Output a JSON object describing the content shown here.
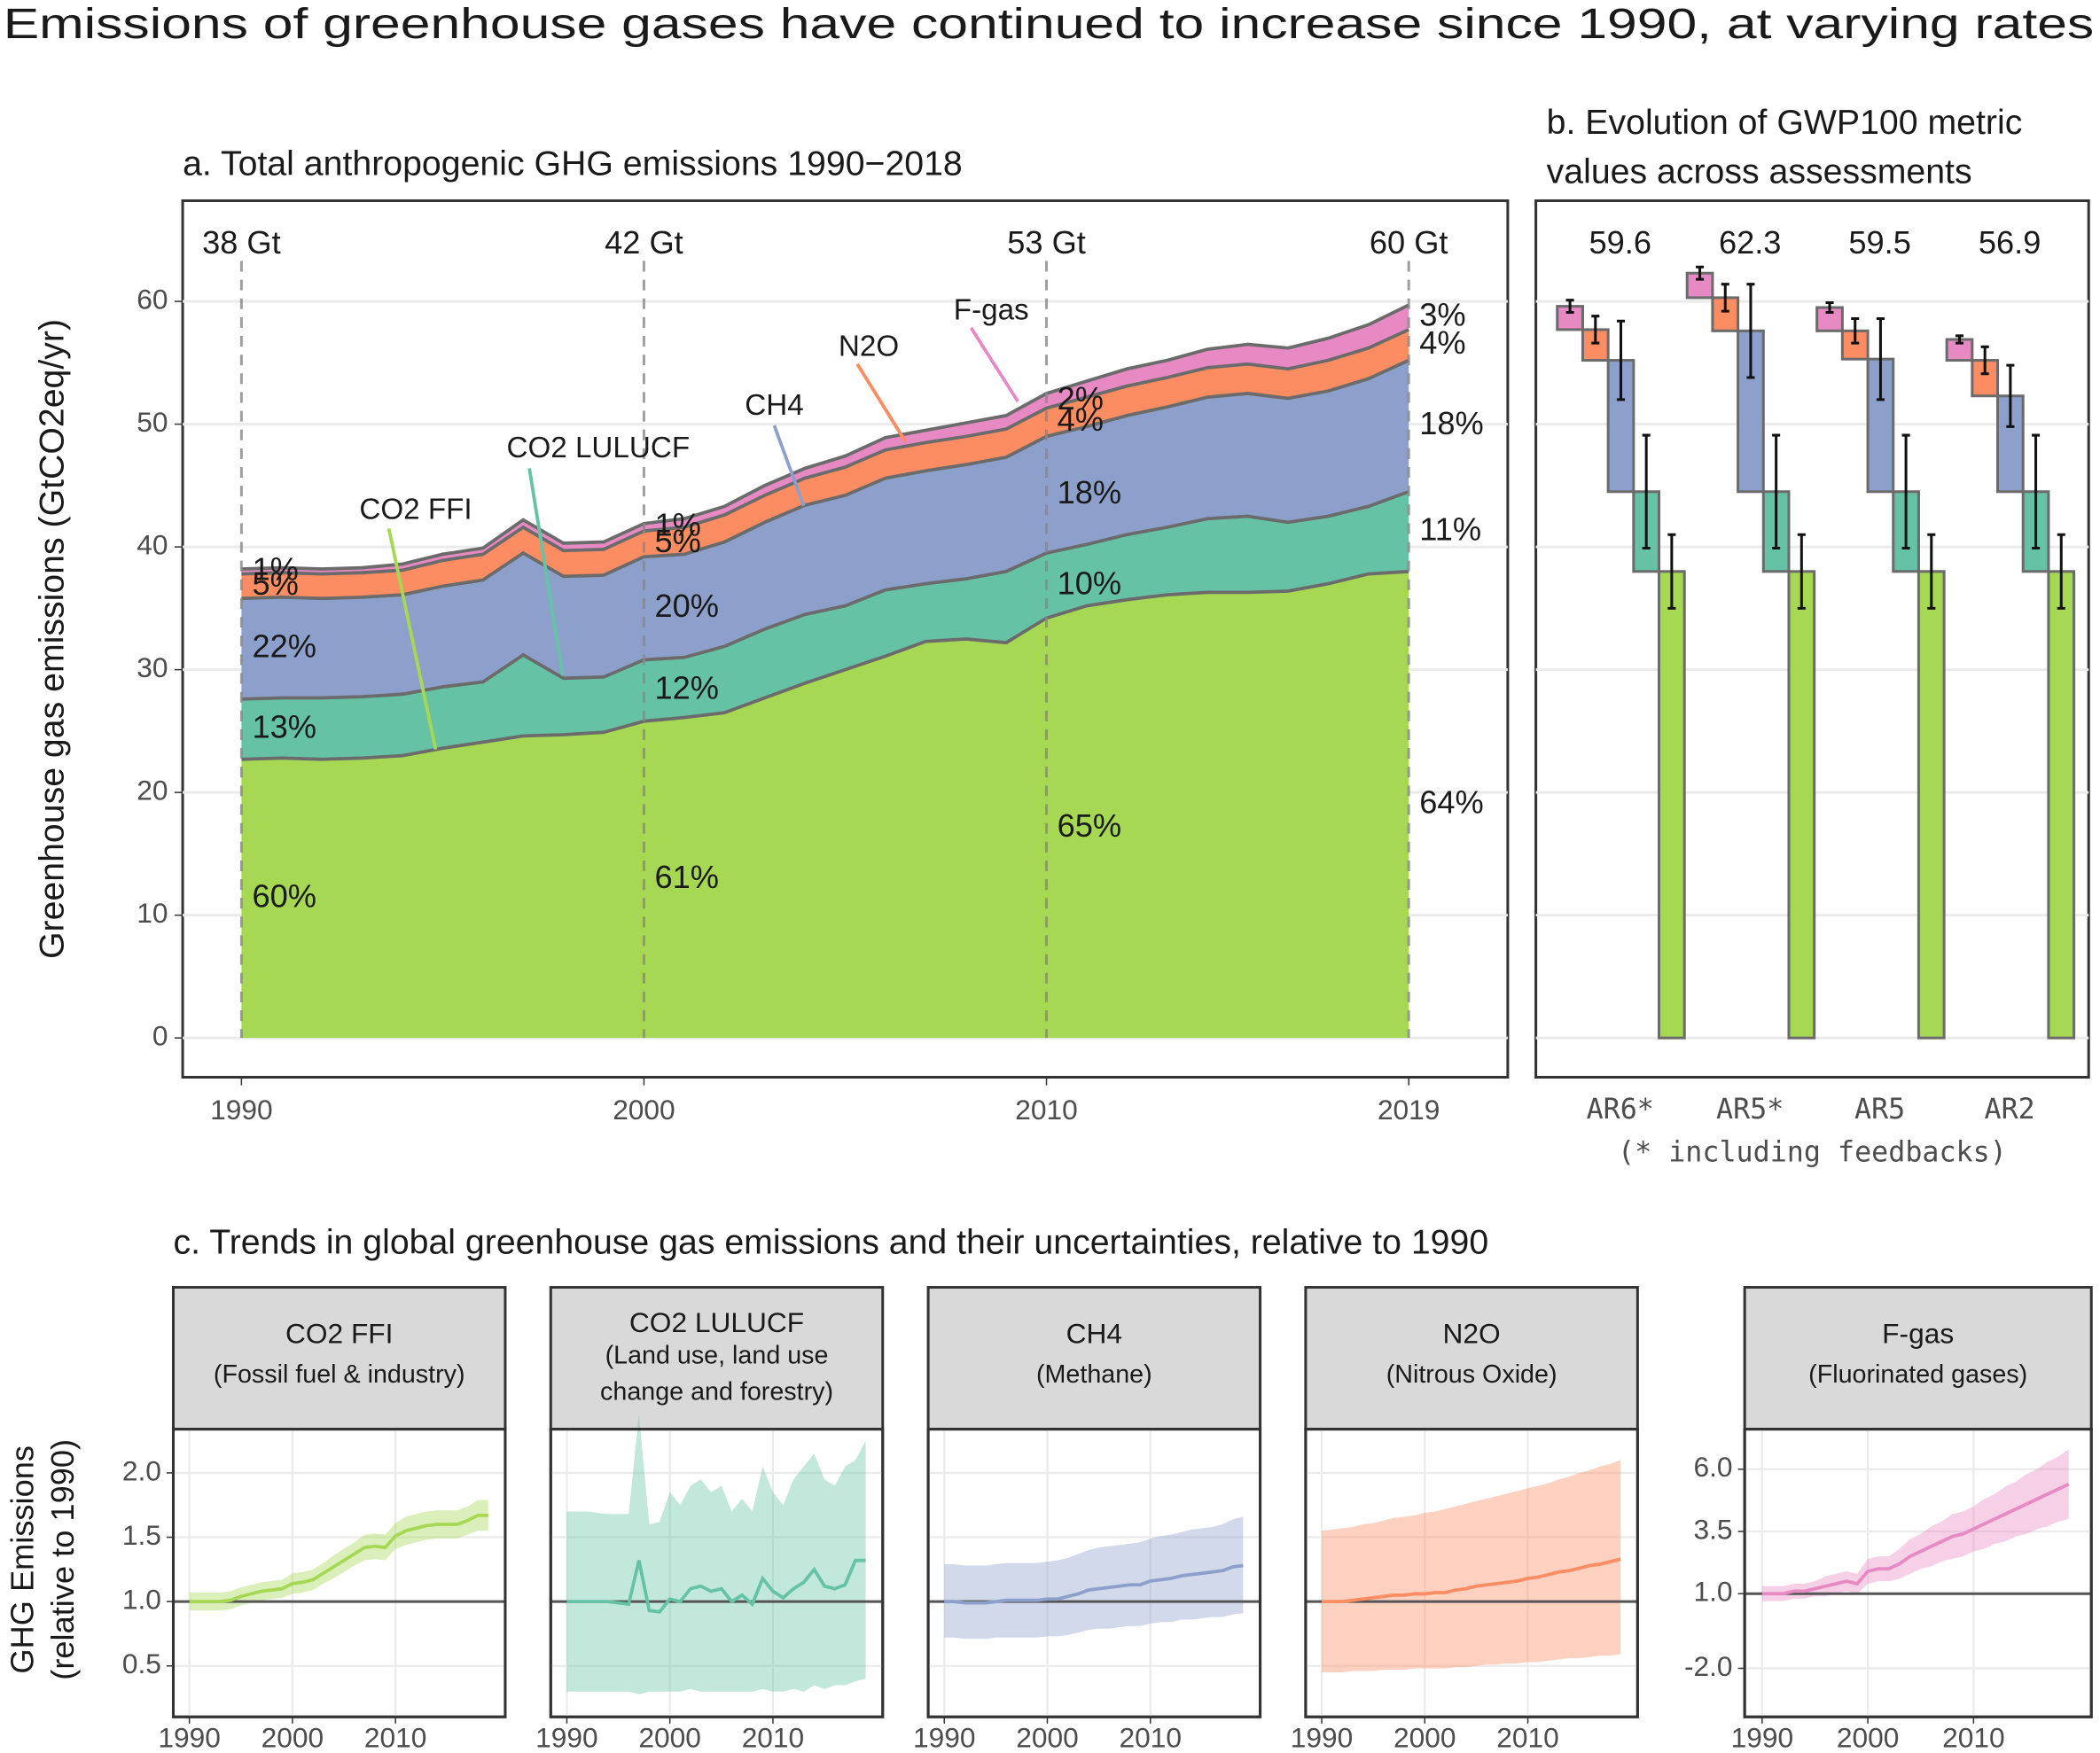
{
  "title": "Emissions of greenhouse gases have continued to increase since 1990, at varying rates",
  "chart_data": [
    {
      "type": "area",
      "title": "a. Total anthropogenic GHG emissions 1990−2018",
      "ylabel": "Greenhouse gas emissions (GtCO2eq/yr)",
      "x": [
        1990,
        1991,
        1992,
        1993,
        1994,
        1995,
        1996,
        1997,
        1998,
        1999,
        2000,
        2001,
        2002,
        2003,
        2004,
        2005,
        2006,
        2007,
        2008,
        2009,
        2010,
        2011,
        2012,
        2013,
        2014,
        2015,
        2016,
        2017,
        2018,
        2019
      ],
      "xlim": [
        1988.54,
        2021.46
      ],
      "xticks": [
        1990,
        2000,
        2010,
        2019
      ],
      "ylim": [
        -3.2,
        68.2
      ],
      "yticks": [
        0,
        10,
        20,
        30,
        40,
        50,
        60
      ],
      "grid": true,
      "series": [
        {
          "name": "CO2 FFI",
          "color": "#a6d854",
          "values": [
            22.7,
            22.8,
            22.7,
            22.8,
            23.0,
            23.6,
            24.1,
            24.6,
            24.7,
            24.9,
            25.8,
            26.1,
            26.5,
            27.7,
            28.9,
            30.0,
            31.1,
            32.3,
            32.5,
            32.2,
            34.2,
            35.2,
            35.7,
            36.1,
            36.3,
            36.3,
            36.4,
            37.0,
            37.8,
            38.0
          ]
        },
        {
          "name": "CO2 LULUCF",
          "color": "#66c2a5",
          "values": [
            4.9,
            4.9,
            5.0,
            5.0,
            5.0,
            5.0,
            4.9,
            6.6,
            4.6,
            4.5,
            5.0,
            4.9,
            5.4,
            5.6,
            5.6,
            5.2,
            5.4,
            4.7,
            4.9,
            5.8,
            5.3,
            5.0,
            5.3,
            5.5,
            6.0,
            6.2,
            5.6,
            5.5,
            5.5,
            6.5
          ]
        },
        {
          "name": "CH4",
          "color": "#8da0cb",
          "values": [
            8.2,
            8.2,
            8.1,
            8.1,
            8.1,
            8.2,
            8.3,
            8.3,
            8.3,
            8.3,
            8.4,
            8.4,
            8.5,
            8.7,
            8.9,
            9.0,
            9.1,
            9.2,
            9.3,
            9.3,
            9.5,
            9.6,
            9.7,
            9.8,
            9.9,
            10.0,
            10.1,
            10.2,
            10.4,
            10.7
          ]
        },
        {
          "name": "N2O",
          "color": "#fc8d62",
          "values": [
            2.0,
            2.0,
            2.0,
            2.0,
            2.0,
            2.1,
            2.1,
            2.1,
            2.1,
            2.1,
            2.1,
            2.2,
            2.2,
            2.2,
            2.2,
            2.3,
            2.3,
            2.3,
            2.3,
            2.3,
            2.3,
            2.4,
            2.4,
            2.4,
            2.4,
            2.4,
            2.4,
            2.5,
            2.5,
            2.5
          ]
        },
        {
          "name": "F-gas",
          "color": "#e78ac3",
          "values": [
            0.4,
            0.4,
            0.4,
            0.4,
            0.5,
            0.5,
            0.5,
            0.6,
            0.6,
            0.6,
            0.6,
            0.7,
            0.7,
            0.8,
            0.8,
            0.9,
            1.0,
            1.0,
            1.1,
            1.1,
            1.2,
            1.3,
            1.4,
            1.4,
            1.5,
            1.6,
            1.7,
            1.8,
            1.9,
            2.0
          ]
        }
      ],
      "markers": [
        {
          "x": 1990,
          "total": "38 Gt",
          "shares": [
            "60%",
            "13%",
            "22%",
            "5%",
            "1%"
          ]
        },
        {
          "x": 2000,
          "total": "42 Gt",
          "shares": [
            "61%",
            "12%",
            "20%",
            "5%",
            "1%"
          ]
        },
        {
          "x": 2010,
          "total": "53 Gt",
          "shares": [
            "65%",
            "10%",
            "18%",
            "4%",
            "2%"
          ]
        },
        {
          "x": 2019,
          "total": "60 Gt",
          "shares": [
            "64%",
            "11%",
            "18%",
            "4%",
            "3%"
          ]
        }
      ]
    },
    {
      "type": "waterfall",
      "title": [
        "b. Evolution of GWP100 metric",
        "values across assessments"
      ],
      "categories": [
        "AR6*",
        "AR5*",
        "AR5",
        "AR2"
      ],
      "note": "(* including feedbacks)",
      "ylim": [
        -3.2,
        68.2
      ],
      "gridlines": [
        0,
        10,
        20,
        30,
        40,
        50,
        60
      ],
      "totals": [
        59.6,
        62.3,
        59.5,
        56.9
      ],
      "series": [
        {
          "color": "#a6d854",
          "values": [
            38,
            38,
            38,
            38
          ],
          "errors": [
            3,
            3,
            3,
            3
          ]
        },
        {
          "color": "#66c2a5",
          "values": [
            6.5,
            6.5,
            6.5,
            6.5
          ],
          "errors": [
            4.6,
            4.6,
            4.6,
            4.6
          ]
        },
        {
          "color": "#8da0cb",
          "values": [
            10.7,
            13.1,
            10.8,
            7.8
          ],
          "errors": [
            3.2,
            3.8,
            3.3,
            2.5
          ]
        },
        {
          "color": "#fc8d62",
          "values": [
            2.5,
            2.7,
            2.3,
            2.9
          ],
          "errors": [
            1.1,
            1.1,
            1.0,
            1.1
          ]
        },
        {
          "color": "#e78ac3",
          "values": [
            1.9,
            2.0,
            1.9,
            1.7
          ],
          "errors": [
            0.5,
            0.5,
            0.4,
            0.3
          ]
        }
      ]
    },
    {
      "type": "band-line",
      "section_title": "c. Trends in global greenhouse gas emissions and their uncertainties, relative to 1990",
      "ylabel": [
        "GHG Emissions",
        "(relative to 1990)"
      ],
      "title": "CO2 FFI",
      "subtitle": [
        "(Fossil fuel & industry)"
      ],
      "color": "#a6d854",
      "x": [
        1990,
        1991,
        1992,
        1993,
        1994,
        1995,
        1996,
        1997,
        1998,
        1999,
        2000,
        2001,
        2002,
        2003,
        2004,
        2005,
        2006,
        2007,
        2008,
        2009,
        2010,
        2011,
        2012,
        2013,
        2014,
        2015,
        2016,
        2017,
        2018,
        2019
      ],
      "values": [
        1.0,
        1.0,
        1.0,
        1.0,
        1.01,
        1.04,
        1.06,
        1.08,
        1.09,
        1.1,
        1.14,
        1.15,
        1.17,
        1.22,
        1.27,
        1.32,
        1.37,
        1.42,
        1.43,
        1.42,
        1.51,
        1.55,
        1.57,
        1.59,
        1.6,
        1.6,
        1.6,
        1.63,
        1.67,
        1.67
      ],
      "lower": [
        0.93,
        0.93,
        0.93,
        0.93,
        0.94,
        0.97,
        0.99,
        1.01,
        1.02,
        1.03,
        1.06,
        1.07,
        1.09,
        1.14,
        1.18,
        1.23,
        1.28,
        1.32,
        1.33,
        1.32,
        1.41,
        1.44,
        1.46,
        1.48,
        1.49,
        1.49,
        1.49,
        1.52,
        1.55,
        1.55
      ],
      "upper": [
        1.07,
        1.07,
        1.07,
        1.07,
        1.08,
        1.11,
        1.13,
        1.15,
        1.16,
        1.17,
        1.22,
        1.23,
        1.25,
        1.3,
        1.36,
        1.41,
        1.46,
        1.52,
        1.53,
        1.52,
        1.61,
        1.66,
        1.68,
        1.7,
        1.71,
        1.71,
        1.71,
        1.74,
        1.79,
        1.79
      ],
      "reference": 1,
      "xlim": [
        1988.44,
        2020.65
      ],
      "xticks": [
        1990,
        2000,
        2010
      ],
      "ylim": [
        0.104,
        2.34
      ],
      "yticks": [
        0.5,
        {
          "value": 1,
          "label": "1.0"
        },
        1.5,
        {
          "value": 2,
          "label": "2.0"
        }
      ],
      "grid": true
    },
    {
      "type": "band-line",
      "title": "CO2 LULUCF",
      "subtitle": [
        "(Land use, land use",
        "change and forestry)"
      ],
      "color": "#66c2a5",
      "x": [
        1990,
        1991,
        1992,
        1993,
        1994,
        1995,
        1996,
        1997,
        1998,
        1999,
        2000,
        2001,
        2002,
        2003,
        2004,
        2005,
        2006,
        2007,
        2008,
        2009,
        2010,
        2011,
        2012,
        2013,
        2014,
        2015,
        2016,
        2017,
        2018,
        2019
      ],
      "values": [
        1.0,
        1.0,
        1.0,
        1.0,
        1.0,
        0.99,
        0.98,
        1.32,
        0.93,
        0.92,
        1.02,
        1.0,
        1.1,
        1.12,
        1.08,
        1.1,
        1.0,
        1.05,
        0.98,
        1.18,
        1.08,
        1.03,
        1.1,
        1.15,
        1.25,
        1.12,
        1.1,
        1.13,
        1.32,
        1.32
      ],
      "lower": [
        0.3,
        0.3,
        0.3,
        0.3,
        0.3,
        0.3,
        0.3,
        0.28,
        0.3,
        0.3,
        0.3,
        0.3,
        0.32,
        0.3,
        0.3,
        0.3,
        0.3,
        0.3,
        0.3,
        0.32,
        0.3,
        0.3,
        0.32,
        0.3,
        0.35,
        0.32,
        0.35,
        0.35,
        0.38,
        0.4
      ],
      "upper": [
        1.7,
        1.7,
        1.7,
        1.69,
        1.68,
        1.68,
        1.68,
        2.45,
        1.6,
        1.62,
        1.85,
        1.75,
        1.9,
        1.95,
        1.85,
        1.9,
        1.7,
        1.8,
        1.7,
        2.05,
        1.85,
        1.75,
        1.95,
        2.05,
        2.15,
        1.95,
        1.9,
        2.05,
        2.1,
        2.25
      ],
      "reference": 1,
      "xlim": [
        1988.44,
        2020.65
      ],
      "xticks": [
        1990,
        2000,
        2010
      ],
      "ylim": [
        0.104,
        2.34
      ],
      "grid": true
    },
    {
      "type": "band-line",
      "title": "CH4",
      "subtitle": [
        "(Methane)"
      ],
      "color": "#8da0cb",
      "x": [
        1990,
        1991,
        1992,
        1993,
        1994,
        1995,
        1996,
        1997,
        1998,
        1999,
        2000,
        2001,
        2002,
        2003,
        2004,
        2005,
        2006,
        2007,
        2008,
        2009,
        2010,
        2011,
        2012,
        2013,
        2014,
        2015,
        2016,
        2017,
        2018,
        2019
      ],
      "values": [
        1.0,
        1.0,
        0.99,
        0.99,
        0.99,
        1.0,
        1.01,
        1.01,
        1.01,
        1.01,
        1.02,
        1.02,
        1.04,
        1.06,
        1.09,
        1.1,
        1.11,
        1.12,
        1.13,
        1.13,
        1.16,
        1.17,
        1.18,
        1.2,
        1.21,
        1.22,
        1.23,
        1.24,
        1.27,
        1.28
      ],
      "lower": [
        0.72,
        0.72,
        0.71,
        0.71,
        0.71,
        0.72,
        0.72,
        0.72,
        0.72,
        0.72,
        0.73,
        0.73,
        0.74,
        0.76,
        0.78,
        0.79,
        0.79,
        0.8,
        0.81,
        0.81,
        0.83,
        0.84,
        0.84,
        0.86,
        0.86,
        0.87,
        0.88,
        0.88,
        0.9,
        0.91
      ],
      "upper": [
        1.29,
        1.29,
        1.28,
        1.28,
        1.28,
        1.29,
        1.3,
        1.3,
        1.3,
        1.3,
        1.31,
        1.32,
        1.34,
        1.37,
        1.4,
        1.42,
        1.43,
        1.44,
        1.45,
        1.46,
        1.49,
        1.51,
        1.52,
        1.54,
        1.56,
        1.57,
        1.58,
        1.6,
        1.64,
        1.66
      ],
      "reference": 1,
      "xlim": [
        1988.44,
        2020.65
      ],
      "xticks": [
        1990,
        2000,
        2010
      ],
      "ylim": [
        0.104,
        2.34
      ],
      "grid": true
    },
    {
      "type": "band-line",
      "title": "N2O",
      "subtitle": [
        "(Nitrous Oxide)"
      ],
      "color": "#fc8d62",
      "x": [
        1990,
        1991,
        1992,
        1993,
        1994,
        1995,
        1996,
        1997,
        1998,
        1999,
        2000,
        2001,
        2002,
        2003,
        2004,
        2005,
        2006,
        2007,
        2008,
        2009,
        2010,
        2011,
        2012,
        2013,
        2014,
        2015,
        2016,
        2017,
        2018,
        2019
      ],
      "values": [
        1.0,
        1.0,
        1.0,
        1.01,
        1.02,
        1.03,
        1.04,
        1.05,
        1.05,
        1.06,
        1.06,
        1.07,
        1.07,
        1.09,
        1.1,
        1.12,
        1.13,
        1.14,
        1.15,
        1.16,
        1.18,
        1.19,
        1.21,
        1.23,
        1.24,
        1.26,
        1.28,
        1.29,
        1.31,
        1.33
      ],
      "lower": [
        0.45,
        0.45,
        0.45,
        0.46,
        0.46,
        0.46,
        0.47,
        0.47,
        0.47,
        0.48,
        0.48,
        0.48,
        0.48,
        0.49,
        0.49,
        0.5,
        0.51,
        0.51,
        0.52,
        0.52,
        0.53,
        0.53,
        0.54,
        0.55,
        0.56,
        0.56,
        0.57,
        0.58,
        0.58,
        0.59
      ],
      "upper": [
        1.55,
        1.56,
        1.57,
        1.58,
        1.6,
        1.61,
        1.63,
        1.65,
        1.66,
        1.67,
        1.69,
        1.7,
        1.72,
        1.74,
        1.76,
        1.78,
        1.8,
        1.82,
        1.84,
        1.86,
        1.88,
        1.9,
        1.92,
        1.95,
        1.97,
        2.0,
        2.02,
        2.05,
        2.07,
        2.1
      ],
      "reference": 1,
      "xlim": [
        1988.44,
        2020.65
      ],
      "xticks": [
        1990,
        2000,
        2010
      ],
      "ylim": [
        0.104,
        2.34
      ],
      "grid": true
    },
    {
      "type": "band-line",
      "title": "F-gas",
      "subtitle": [
        "(Fluorinated gases)"
      ],
      "color": "#e78ac3",
      "x": [
        1990,
        1991,
        1992,
        1993,
        1994,
        1995,
        1996,
        1997,
        1998,
        1999,
        2000,
        2001,
        2002,
        2003,
        2004,
        2005,
        2006,
        2007,
        2008,
        2009,
        2010,
        2011,
        2012,
        2013,
        2014,
        2015,
        2016,
        2017,
        2018,
        2019
      ],
      "values": [
        1.0,
        1.0,
        1.0,
        1.1,
        1.1,
        1.2,
        1.3,
        1.4,
        1.5,
        1.4,
        1.9,
        2.0,
        2.0,
        2.2,
        2.5,
        2.7,
        2.9,
        3.1,
        3.3,
        3.4,
        3.6,
        3.8,
        4.0,
        4.2,
        4.4,
        4.6,
        4.8,
        5.0,
        5.2,
        5.4
      ],
      "lower": [
        0.7,
        0.7,
        0.7,
        0.8,
        0.8,
        0.9,
        0.9,
        1.0,
        1.1,
        1.0,
        1.4,
        1.5,
        1.5,
        1.6,
        1.8,
        2.0,
        2.1,
        2.3,
        2.4,
        2.5,
        2.7,
        2.8,
        3.0,
        3.1,
        3.3,
        3.4,
        3.6,
        3.7,
        3.9,
        4.0
      ],
      "upper": [
        1.3,
        1.3,
        1.3,
        1.4,
        1.4,
        1.5,
        1.7,
        1.8,
        1.9,
        1.8,
        2.4,
        2.5,
        2.5,
        2.8,
        3.2,
        3.4,
        3.7,
        3.9,
        4.2,
        4.3,
        4.5,
        4.8,
        5.0,
        5.3,
        5.5,
        5.8,
        6.0,
        6.3,
        6.5,
        6.8
      ],
      "reference": 1,
      "xlim": [
        1988.35,
        2021.14
      ],
      "xticks": [
        1990,
        2000,
        2010
      ],
      "ylim": [
        -3.95,
        7.61
      ],
      "yticks": [
        {
          "value": -2,
          "label": "-2.0"
        },
        {
          "value": 1,
          "label": "1.0"
        },
        3.5,
        {
          "value": 6,
          "label": "6.0"
        }
      ],
      "grid": true
    }
  ]
}
